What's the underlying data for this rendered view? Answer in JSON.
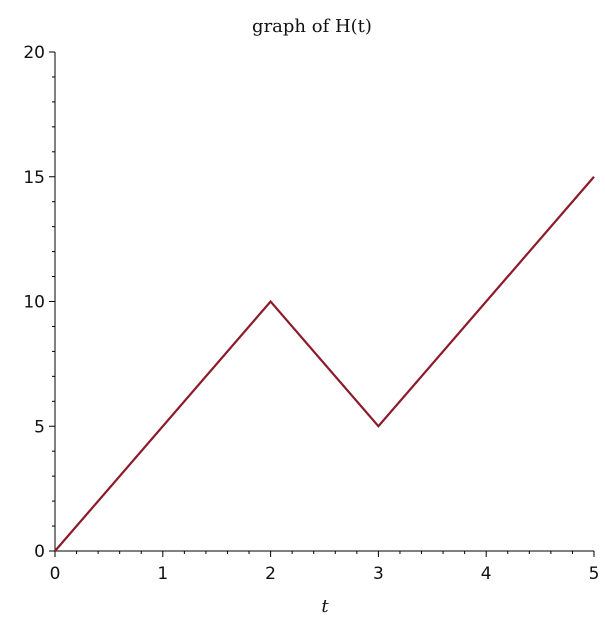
{
  "chart_data": {
    "type": "line",
    "title": "graph of H(t)",
    "xlabel": "t",
    "ylabel": "",
    "xlim": [
      0,
      5
    ],
    "ylim": [
      0,
      20
    ],
    "x_ticks": [
      0,
      1,
      2,
      3,
      4,
      5
    ],
    "y_ticks": [
      0,
      5,
      10,
      15,
      20
    ],
    "grid": false,
    "series": [
      {
        "x": [
          0,
          2,
          3,
          5
        ],
        "y": [
          0,
          10,
          5,
          15
        ],
        "color": "#8b1a2b"
      }
    ]
  }
}
